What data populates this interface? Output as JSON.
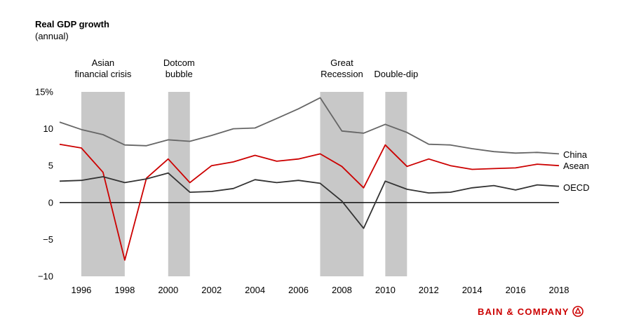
{
  "chart_data": {
    "type": "line",
    "title": "Real GDP growth",
    "subtitle": "(annual)",
    "xlabel": "",
    "ylabel": "",
    "xlim": [
      1995,
      2018
    ],
    "ylim": [
      -10,
      15
    ],
    "y_ticks": [
      -10,
      -5,
      0,
      5,
      10,
      15
    ],
    "y_tick_labels": [
      "−10",
      "−5",
      "0",
      "5",
      "10",
      "15%"
    ],
    "x_ticks": [
      1996,
      1998,
      2000,
      2002,
      2004,
      2006,
      2008,
      2010,
      2012,
      2014,
      2016,
      2018
    ],
    "x_tick_labels": [
      "1996",
      "1998",
      "2000",
      "2002",
      "2004",
      "2006",
      "2008",
      "2010",
      "2012",
      "2014",
      "2016",
      "2018"
    ],
    "x": [
      1995,
      1996,
      1997,
      1998,
      1999,
      2000,
      2001,
      2002,
      2003,
      2004,
      2005,
      2006,
      2007,
      2008,
      2009,
      2010,
      2011,
      2012,
      2013,
      2014,
      2015,
      2016,
      2017,
      2018
    ],
    "series": [
      {
        "name": "China",
        "color": "#666666",
        "values": [
          10.9,
          9.9,
          9.2,
          7.8,
          7.7,
          8.5,
          8.3,
          9.1,
          10.0,
          10.1,
          11.4,
          12.7,
          14.2,
          9.7,
          9.4,
          10.6,
          9.5,
          7.9,
          7.8,
          7.3,
          6.9,
          6.7,
          6.8,
          6.6
        ]
      },
      {
        "name": "Asean",
        "color": "#cc0000",
        "values": [
          7.9,
          7.4,
          4.1,
          -7.8,
          3.3,
          5.9,
          2.7,
          5.0,
          5.5,
          6.4,
          5.6,
          5.9,
          6.6,
          4.9,
          2.0,
          7.8,
          4.9,
          5.9,
          5.0,
          4.5,
          4.6,
          4.7,
          5.2,
          5.0
        ]
      },
      {
        "name": "OECD",
        "color": "#333333",
        "values": [
          2.9,
          3.0,
          3.5,
          2.7,
          3.2,
          4.0,
          1.4,
          1.5,
          1.9,
          3.1,
          2.7,
          3.0,
          2.6,
          0.2,
          -3.5,
          2.9,
          1.8,
          1.3,
          1.4,
          2.0,
          2.3,
          1.7,
          2.4,
          2.2
        ]
      }
    ],
    "shaded_periods": [
      {
        "label": "Asian financial crisis",
        "lines": [
          "Asian",
          "financial crisis"
        ],
        "start": 1996,
        "end": 1998
      },
      {
        "label": "Dotcom bubble",
        "lines": [
          "Dotcom",
          "bubble"
        ],
        "start": 2000,
        "end": 2001
      },
      {
        "label": "Great Recession",
        "lines": [
          "Great",
          "Recession"
        ],
        "start": 2007,
        "end": 2009
      },
      {
        "label": "Double-dip",
        "lines": [
          "Double-dip"
        ],
        "start": 2010,
        "end": 2011
      }
    ],
    "zero_line": true,
    "grid": false,
    "legend": "inline-right"
  },
  "brand": {
    "name": "BAIN & COMPANY",
    "icon": "bain-logo-icon",
    "color": "#cc0000"
  }
}
